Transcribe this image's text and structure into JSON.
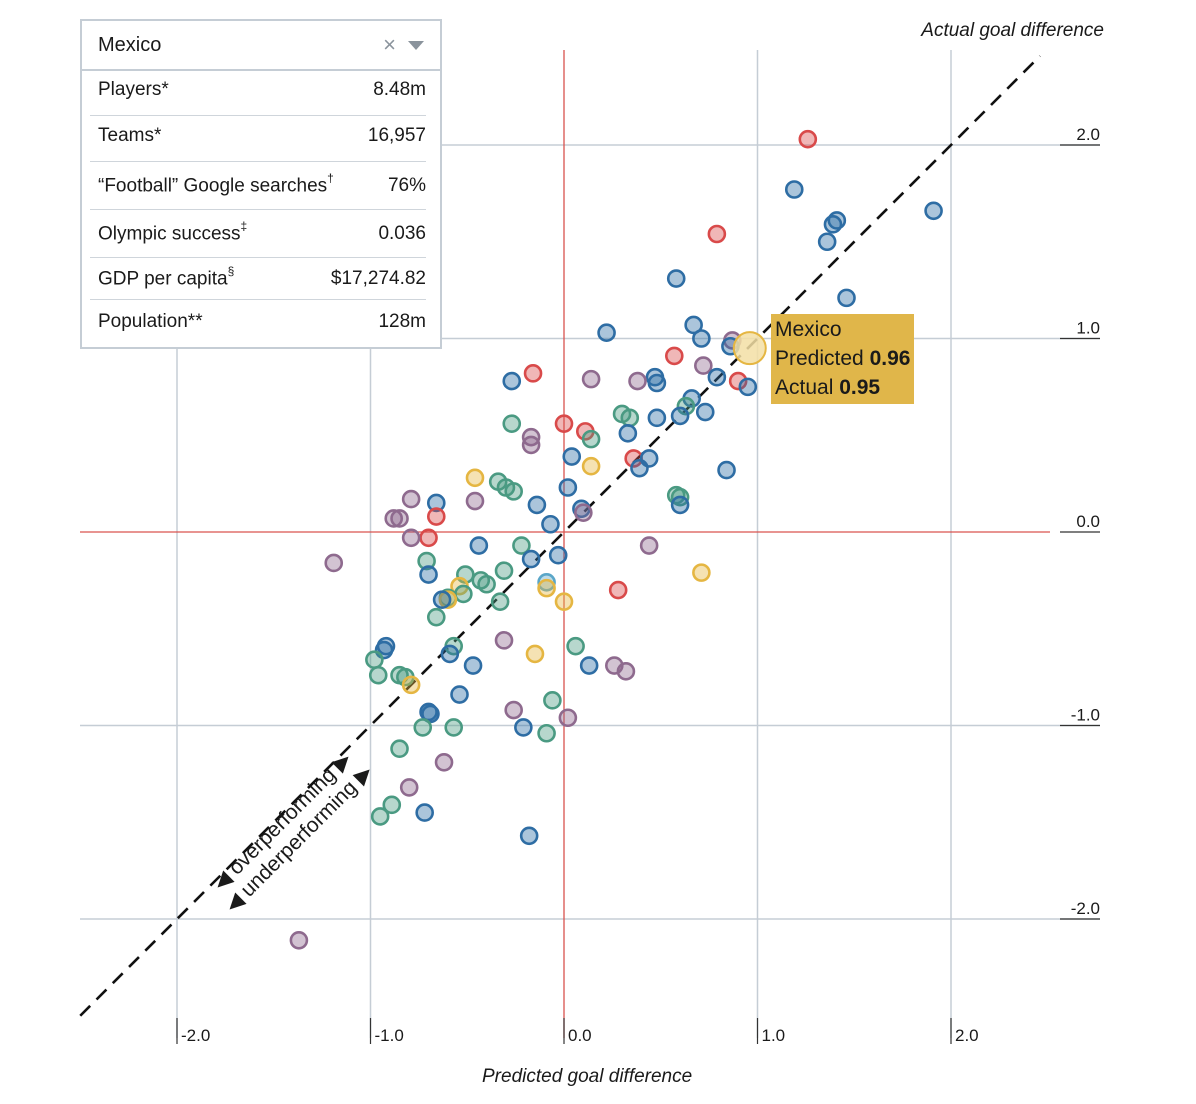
{
  "selector": {
    "country": "Mexico",
    "clear_icon": "×",
    "dropdown_icon": "chevron-down"
  },
  "stats": [
    {
      "label": "Players*",
      "sup": "",
      "value": "8.48m"
    },
    {
      "label": "Teams*",
      "sup": "",
      "value": "16,957"
    },
    {
      "label": "“Football” Google searches",
      "sup": "†",
      "value": "76%"
    },
    {
      "label": "Olympic success",
      "sup": "‡",
      "value": "0.036"
    },
    {
      "label": "GDP per capita",
      "sup": "§",
      "value": "$17,274.82"
    },
    {
      "label": "Population**",
      "sup": "",
      "value": "128m"
    }
  ],
  "highlight": {
    "name": "Mexico",
    "predicted_label": "Predicted",
    "predicted": "0.96",
    "actual_label": "Actual",
    "actual": "0.95"
  },
  "annotations": {
    "over": "overperforming",
    "under": "underperforming"
  },
  "colors": {
    "blue": "#2e6da4",
    "teal": "#4a9a82",
    "purple": "#8e6a8e",
    "red": "#d94a4a",
    "yellow": "#e5b642",
    "lightblue": "#5aa6c8",
    "zero_line": "#d9534f",
    "grid": "#c5cdd5",
    "highlight_fill": "#e0b64a"
  },
  "chart_data": {
    "type": "scatter",
    "xlabel": "Predicted goal difference",
    "ylabel": "Actual goal difference",
    "xlim": [
      -2.5,
      2.5
    ],
    "ylim": [
      -2.5,
      2.5
    ],
    "x_ticks": [
      "-2.0",
      "-1.0",
      "0.0",
      "1.0",
      "2.0"
    ],
    "y_ticks": [
      "2.0",
      "1.0",
      "0.0",
      "-1.0",
      "-2.0"
    ],
    "grid": true,
    "reference_line": "y = x",
    "highlighted_point": {
      "label": "Mexico",
      "x": 0.96,
      "y": 0.95
    },
    "points": [
      {
        "x": 1.26,
        "y": 2.03,
        "c": "red"
      },
      {
        "x": 1.19,
        "y": 1.77,
        "c": "blue"
      },
      {
        "x": 1.41,
        "y": 1.61,
        "c": "blue"
      },
      {
        "x": 1.39,
        "y": 1.59,
        "c": "blue"
      },
      {
        "x": 1.36,
        "y": 1.5,
        "c": "blue"
      },
      {
        "x": 1.91,
        "y": 1.66,
        "c": "blue"
      },
      {
        "x": 0.79,
        "y": 1.54,
        "c": "red"
      },
      {
        "x": 0.58,
        "y": 1.31,
        "c": "blue"
      },
      {
        "x": 1.46,
        "y": 1.21,
        "c": "blue"
      },
      {
        "x": 0.22,
        "y": 1.03,
        "c": "blue"
      },
      {
        "x": 0.67,
        "y": 1.07,
        "c": "blue"
      },
      {
        "x": 0.71,
        "y": 1.0,
        "c": "blue"
      },
      {
        "x": 0.87,
        "y": 0.99,
        "c": "purple"
      },
      {
        "x": 0.86,
        "y": 0.96,
        "c": "blue"
      },
      {
        "x": 0.57,
        "y": 0.91,
        "c": "red"
      },
      {
        "x": 0.72,
        "y": 0.86,
        "c": "purple"
      },
      {
        "x": 0.47,
        "y": 0.8,
        "c": "blue"
      },
      {
        "x": 0.48,
        "y": 0.77,
        "c": "blue"
      },
      {
        "x": 0.38,
        "y": 0.78,
        "c": "purple"
      },
      {
        "x": 0.14,
        "y": 0.79,
        "c": "purple"
      },
      {
        "x": -0.16,
        "y": 0.82,
        "c": "red"
      },
      {
        "x": -0.27,
        "y": 0.78,
        "c": "blue"
      },
      {
        "x": 0.79,
        "y": 0.8,
        "c": "blue"
      },
      {
        "x": 0.9,
        "y": 0.78,
        "c": "red"
      },
      {
        "x": 0.95,
        "y": 0.75,
        "c": "blue"
      },
      {
        "x": 0.66,
        "y": 0.69,
        "c": "blue"
      },
      {
        "x": 0.63,
        "y": 0.65,
        "c": "teal"
      },
      {
        "x": 0.6,
        "y": 0.6,
        "c": "blue"
      },
      {
        "x": 0.73,
        "y": 0.62,
        "c": "blue"
      },
      {
        "x": 0.48,
        "y": 0.59,
        "c": "blue"
      },
      {
        "x": 0.3,
        "y": 0.61,
        "c": "teal"
      },
      {
        "x": 0.34,
        "y": 0.59,
        "c": "teal"
      },
      {
        "x": 0.33,
        "y": 0.51,
        "c": "blue"
      },
      {
        "x": -0.27,
        "y": 0.56,
        "c": "teal"
      },
      {
        "x": 0.0,
        "y": 0.56,
        "c": "red"
      },
      {
        "x": 0.11,
        "y": 0.52,
        "c": "red"
      },
      {
        "x": 0.14,
        "y": 0.48,
        "c": "teal"
      },
      {
        "x": -0.17,
        "y": 0.49,
        "c": "purple"
      },
      {
        "x": -0.17,
        "y": 0.45,
        "c": "purple"
      },
      {
        "x": 0.04,
        "y": 0.39,
        "c": "blue"
      },
      {
        "x": 0.36,
        "y": 0.38,
        "c": "red"
      },
      {
        "x": 0.44,
        "y": 0.38,
        "c": "blue"
      },
      {
        "x": 0.39,
        "y": 0.33,
        "c": "blue"
      },
      {
        "x": 0.14,
        "y": 0.34,
        "c": "yellow"
      },
      {
        "x": 0.84,
        "y": 0.32,
        "c": "blue"
      },
      {
        "x": -0.46,
        "y": 0.28,
        "c": "yellow"
      },
      {
        "x": -0.34,
        "y": 0.26,
        "c": "teal"
      },
      {
        "x": -0.3,
        "y": 0.23,
        "c": "teal"
      },
      {
        "x": -0.26,
        "y": 0.21,
        "c": "teal"
      },
      {
        "x": 0.02,
        "y": 0.23,
        "c": "blue"
      },
      {
        "x": 0.58,
        "y": 0.19,
        "c": "teal"
      },
      {
        "x": 0.6,
        "y": 0.18,
        "c": "teal"
      },
      {
        "x": 0.6,
        "y": 0.14,
        "c": "blue"
      },
      {
        "x": -0.14,
        "y": 0.14,
        "c": "blue"
      },
      {
        "x": 0.09,
        "y": 0.12,
        "c": "blue"
      },
      {
        "x": 0.1,
        "y": 0.1,
        "c": "purple"
      },
      {
        "x": -0.46,
        "y": 0.16,
        "c": "purple"
      },
      {
        "x": -0.79,
        "y": 0.17,
        "c": "purple"
      },
      {
        "x": -0.66,
        "y": 0.15,
        "c": "blue"
      },
      {
        "x": -0.88,
        "y": 0.07,
        "c": "purple"
      },
      {
        "x": -0.85,
        "y": 0.07,
        "c": "purple"
      },
      {
        "x": -0.66,
        "y": 0.08,
        "c": "red"
      },
      {
        "x": -0.07,
        "y": 0.04,
        "c": "blue"
      },
      {
        "x": -0.7,
        "y": -0.03,
        "c": "red"
      },
      {
        "x": -0.79,
        "y": -0.03,
        "c": "purple"
      },
      {
        "x": -0.44,
        "y": -0.07,
        "c": "blue"
      },
      {
        "x": -0.22,
        "y": -0.07,
        "c": "teal"
      },
      {
        "x": 0.44,
        "y": -0.07,
        "c": "purple"
      },
      {
        "x": -0.03,
        "y": -0.12,
        "c": "blue"
      },
      {
        "x": -0.17,
        "y": -0.14,
        "c": "blue"
      },
      {
        "x": -1.19,
        "y": -0.16,
        "c": "purple"
      },
      {
        "x": -0.71,
        "y": -0.15,
        "c": "teal"
      },
      {
        "x": -0.7,
        "y": -0.22,
        "c": "blue"
      },
      {
        "x": -0.51,
        "y": -0.22,
        "c": "teal"
      },
      {
        "x": -0.31,
        "y": -0.2,
        "c": "teal"
      },
      {
        "x": 0.71,
        "y": -0.21,
        "c": "yellow"
      },
      {
        "x": -0.09,
        "y": -0.26,
        "c": "lightblue"
      },
      {
        "x": -0.43,
        "y": -0.25,
        "c": "teal"
      },
      {
        "x": -0.4,
        "y": -0.27,
        "c": "teal"
      },
      {
        "x": -0.54,
        "y": -0.28,
        "c": "yellow"
      },
      {
        "x": -0.09,
        "y": -0.29,
        "c": "yellow"
      },
      {
        "x": -0.52,
        "y": -0.32,
        "c": "teal"
      },
      {
        "x": -0.6,
        "y": -0.34,
        "c": "teal"
      },
      {
        "x": -0.6,
        "y": -0.35,
        "c": "yellow"
      },
      {
        "x": -0.63,
        "y": -0.35,
        "c": "blue"
      },
      {
        "x": -0.33,
        "y": -0.36,
        "c": "teal"
      },
      {
        "x": 0.28,
        "y": -0.3,
        "c": "red"
      },
      {
        "x": 0.0,
        "y": -0.36,
        "c": "yellow"
      },
      {
        "x": -0.66,
        "y": -0.44,
        "c": "teal"
      },
      {
        "x": -0.31,
        "y": -0.56,
        "c": "purple"
      },
      {
        "x": 0.06,
        "y": -0.59,
        "c": "teal"
      },
      {
        "x": -0.57,
        "y": -0.59,
        "c": "teal"
      },
      {
        "x": -0.59,
        "y": -0.63,
        "c": "blue"
      },
      {
        "x": -0.15,
        "y": -0.63,
        "c": "yellow"
      },
      {
        "x": -0.92,
        "y": -0.59,
        "c": "blue"
      },
      {
        "x": -0.93,
        "y": -0.61,
        "c": "blue"
      },
      {
        "x": -0.98,
        "y": -0.66,
        "c": "teal"
      },
      {
        "x": -0.47,
        "y": -0.69,
        "c": "blue"
      },
      {
        "x": 0.13,
        "y": -0.69,
        "c": "blue"
      },
      {
        "x": 0.26,
        "y": -0.69,
        "c": "purple"
      },
      {
        "x": 0.32,
        "y": -0.72,
        "c": "purple"
      },
      {
        "x": -0.96,
        "y": -0.74,
        "c": "teal"
      },
      {
        "x": -0.85,
        "y": -0.74,
        "c": "teal"
      },
      {
        "x": -0.82,
        "y": -0.75,
        "c": "teal"
      },
      {
        "x": -0.79,
        "y": -0.79,
        "c": "yellow"
      },
      {
        "x": -0.54,
        "y": -0.84,
        "c": "blue"
      },
      {
        "x": -0.06,
        "y": -0.87,
        "c": "teal"
      },
      {
        "x": -0.26,
        "y": -0.92,
        "c": "purple"
      },
      {
        "x": -0.7,
        "y": -0.93,
        "c": "blue"
      },
      {
        "x": -0.69,
        "y": -0.94,
        "c": "blue"
      },
      {
        "x": 0.02,
        "y": -0.96,
        "c": "purple"
      },
      {
        "x": -0.21,
        "y": -1.01,
        "c": "blue"
      },
      {
        "x": -0.57,
        "y": -1.01,
        "c": "teal"
      },
      {
        "x": -0.73,
        "y": -1.01,
        "c": "teal"
      },
      {
        "x": -0.09,
        "y": -1.04,
        "c": "teal"
      },
      {
        "x": -0.85,
        "y": -1.12,
        "c": "teal"
      },
      {
        "x": -0.62,
        "y": -1.19,
        "c": "purple"
      },
      {
        "x": -0.8,
        "y": -1.32,
        "c": "purple"
      },
      {
        "x": -0.89,
        "y": -1.41,
        "c": "teal"
      },
      {
        "x": -0.95,
        "y": -1.47,
        "c": "teal"
      },
      {
        "x": -0.72,
        "y": -1.45,
        "c": "blue"
      },
      {
        "x": -0.18,
        "y": -1.57,
        "c": "blue"
      },
      {
        "x": -1.37,
        "y": -2.11,
        "c": "purple"
      }
    ]
  }
}
